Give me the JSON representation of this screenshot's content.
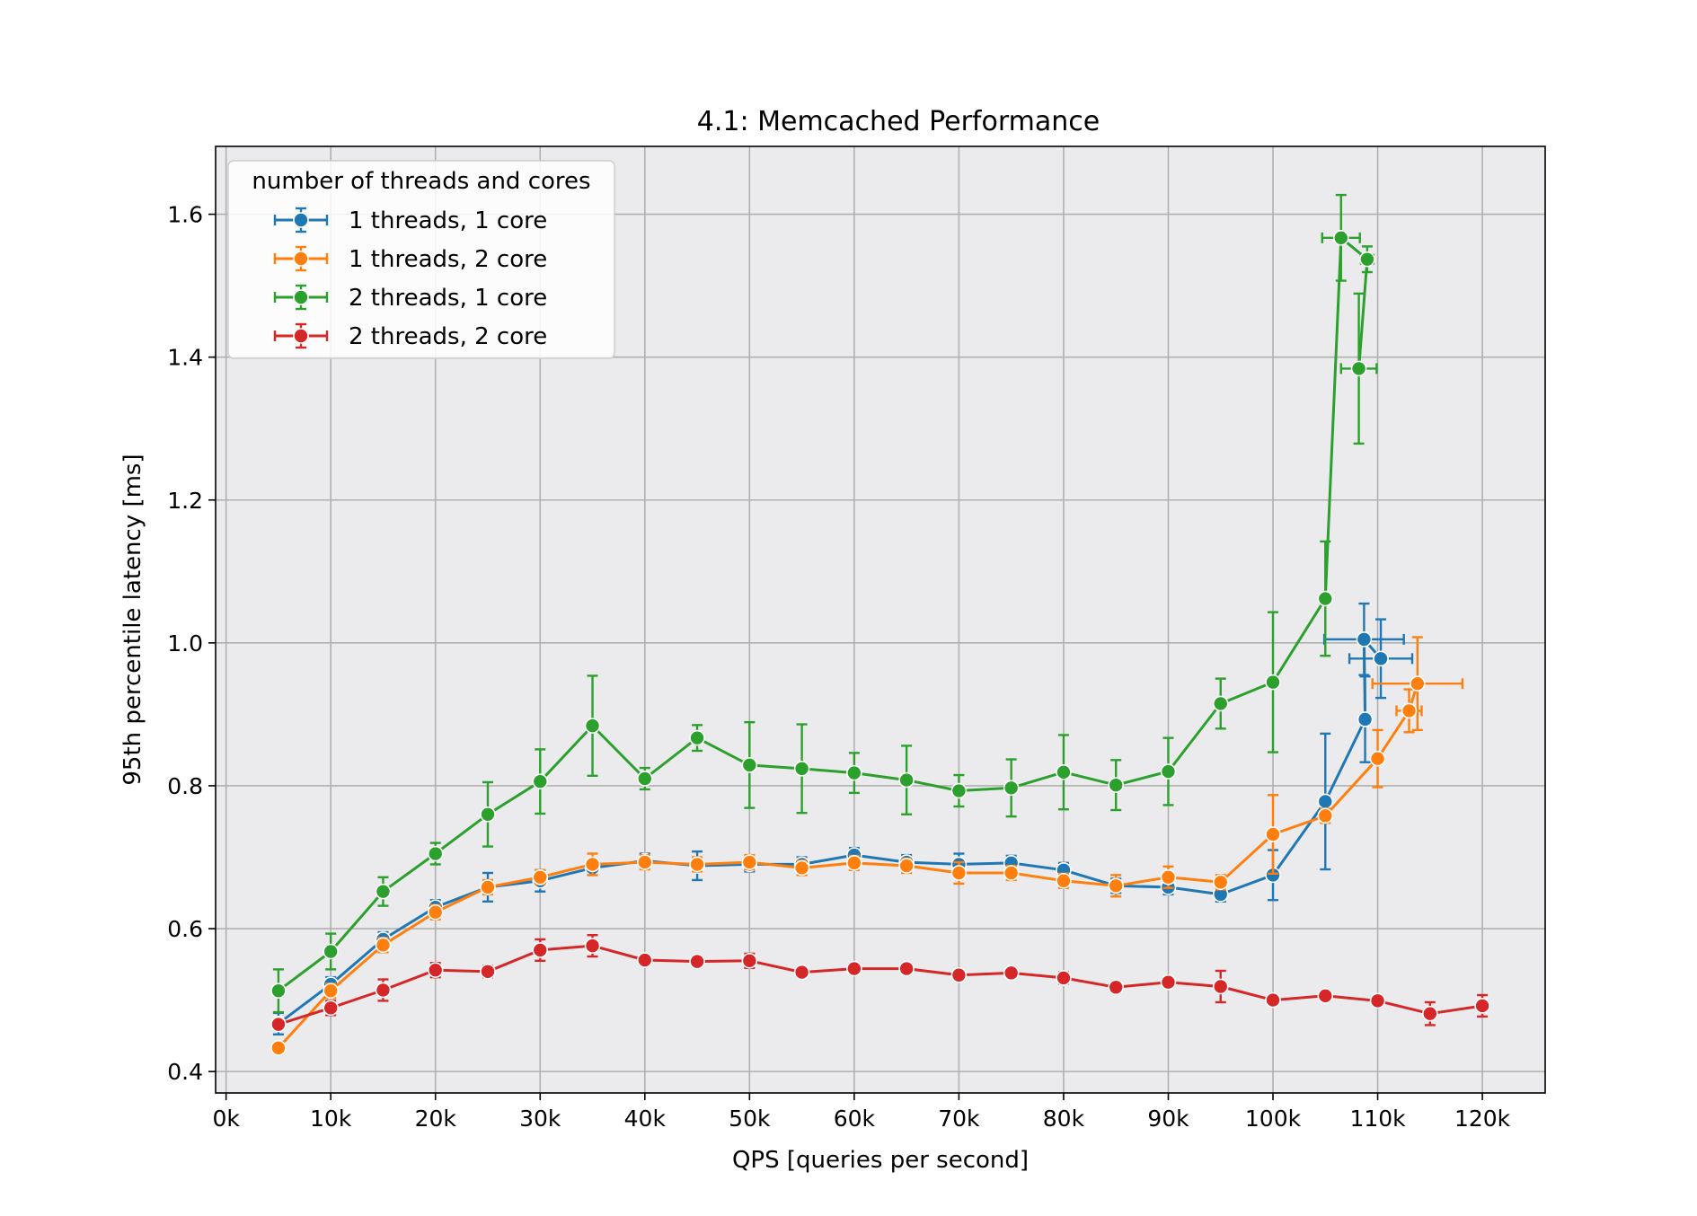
{
  "chart_data": {
    "type": "line",
    "title": "4.1: Memcached Performance",
    "xlabel": "QPS [queries per second]",
    "ylabel": "95th percentile latency [ms]",
    "xlim": [
      -1000,
      126000
    ],
    "ylim": [
      0.37,
      1.695
    ],
    "xticks": [
      0,
      10000,
      20000,
      30000,
      40000,
      50000,
      60000,
      70000,
      80000,
      90000,
      100000,
      110000,
      120000
    ],
    "xtick_labels": [
      "0k",
      "10k",
      "20k",
      "30k",
      "40k",
      "50k",
      "60k",
      "70k",
      "80k",
      "90k",
      "100k",
      "110k",
      "120k"
    ],
    "yticks": [
      0.4,
      0.6,
      0.8,
      1.0,
      1.2,
      1.4,
      1.6
    ],
    "ytick_labels": [
      "0.4",
      "0.6",
      "0.8",
      "1.0",
      "1.2",
      "1.4",
      "1.6"
    ],
    "grid": true,
    "legend": {
      "title": "number of threads and cores",
      "placement": "upper-left"
    },
    "series": [
      {
        "name": "1 threads, 1 core",
        "color": "#1f77b4",
        "x": [
          5000,
          10000,
          15000,
          20000,
          25000,
          30000,
          35000,
          40000,
          45000,
          50000,
          55000,
          60000,
          65000,
          70000,
          75000,
          80000,
          85000,
          90000,
          95000,
          100000,
          105000,
          108800,
          108700,
          110300
        ],
        "y": [
          0.467,
          0.522,
          0.585,
          0.63,
          0.658,
          0.667,
          0.685,
          0.695,
          0.688,
          0.69,
          0.69,
          0.703,
          0.693,
          0.69,
          0.692,
          0.682,
          0.66,
          0.658,
          0.648,
          0.675,
          0.778,
          0.893,
          1.005,
          0.978
        ],
        "yerr": [
          0.015,
          0.01,
          0.01,
          0.01,
          0.02,
          0.015,
          0.01,
          0.01,
          0.02,
          0.01,
          0.01,
          0.01,
          0.01,
          0.015,
          0.01,
          0.01,
          0.01,
          0.01,
          0.01,
          0.035,
          0.095,
          0.06,
          0.05,
          0.055
        ],
        "xerr": [
          0,
          0,
          0,
          0,
          0,
          0,
          0,
          0,
          0,
          0,
          0,
          0,
          0,
          0,
          0,
          0,
          0,
          0,
          0,
          0,
          0,
          0,
          3800,
          3000
        ]
      },
      {
        "name": "1 threads, 2 core",
        "color": "#ff7f0e",
        "x": [
          5000,
          10000,
          15000,
          20000,
          25000,
          30000,
          35000,
          40000,
          45000,
          50000,
          55000,
          60000,
          65000,
          70000,
          75000,
          80000,
          85000,
          90000,
          95000,
          100000,
          105000,
          110000,
          113000,
          113800
        ],
        "y": [
          0.433,
          0.513,
          0.577,
          0.623,
          0.658,
          0.672,
          0.69,
          0.693,
          0.69,
          0.693,
          0.685,
          0.692,
          0.688,
          0.678,
          0.678,
          0.667,
          0.66,
          0.672,
          0.665,
          0.732,
          0.758,
          0.838,
          0.905,
          0.943
        ],
        "yerr": [
          0.005,
          0.01,
          0.01,
          0.01,
          0.01,
          0.01,
          0.015,
          0.01,
          0.01,
          0.01,
          0.01,
          0.01,
          0.01,
          0.015,
          0.01,
          0.01,
          0.015,
          0.015,
          0.01,
          0.055,
          0.01,
          0.04,
          0.03,
          0.065
        ],
        "xerr": [
          0,
          0,
          0,
          0,
          0,
          0,
          0,
          0,
          0,
          0,
          0,
          0,
          0,
          0,
          0,
          0,
          0,
          0,
          0,
          0,
          0,
          0,
          1200,
          4300
        ]
      },
      {
        "name": "2 threads, 1 core",
        "color": "#2ca02c",
        "x": [
          5000,
          10000,
          15000,
          20000,
          25000,
          30000,
          35000,
          40000,
          45000,
          50000,
          55000,
          60000,
          65000,
          70000,
          75000,
          80000,
          85000,
          90000,
          95000,
          100000,
          105000,
          106500,
          109000,
          108200
        ],
        "y": [
          0.513,
          0.568,
          0.652,
          0.705,
          0.76,
          0.806,
          0.884,
          0.81,
          0.867,
          0.829,
          0.824,
          0.818,
          0.808,
          0.793,
          0.797,
          0.819,
          0.801,
          0.82,
          0.915,
          0.945,
          1.062,
          1.567,
          1.537,
          1.384
        ],
        "yerr": [
          0.03,
          0.025,
          0.02,
          0.015,
          0.045,
          0.045,
          0.07,
          0.015,
          0.018,
          0.06,
          0.062,
          0.028,
          0.048,
          0.022,
          0.04,
          0.052,
          0.035,
          0.047,
          0.035,
          0.098,
          0.08,
          0.06,
          0.018,
          0.105
        ],
        "xerr": [
          0,
          0,
          0,
          0,
          0,
          0,
          0,
          0,
          0,
          0,
          0,
          0,
          0,
          0,
          0,
          0,
          0,
          0,
          0,
          0,
          0,
          1800,
          600,
          1700
        ]
      },
      {
        "name": "2 threads, 2 core",
        "color": "#d62728",
        "x": [
          5000,
          10000,
          15000,
          20000,
          25000,
          30000,
          35000,
          40000,
          45000,
          50000,
          55000,
          60000,
          65000,
          70000,
          75000,
          80000,
          85000,
          90000,
          95000,
          100000,
          105000,
          110000,
          115000,
          120000
        ],
        "y": [
          0.466,
          0.489,
          0.514,
          0.542,
          0.54,
          0.57,
          0.576,
          0.556,
          0.554,
          0.555,
          0.539,
          0.544,
          0.544,
          0.535,
          0.538,
          0.531,
          0.518,
          0.525,
          0.519,
          0.5,
          0.506,
          0.499,
          0.481,
          0.492
        ],
        "yerr": [
          0.005,
          0.01,
          0.015,
          0.01,
          0.008,
          0.015,
          0.015,
          0.005,
          0.005,
          0.01,
          0.005,
          0.005,
          0.005,
          0.005,
          0.005,
          0.008,
          0.005,
          0.005,
          0.022,
          0.005,
          0.005,
          0.005,
          0.016,
          0.015
        ],
        "xerr": [
          0,
          0,
          0,
          0,
          0,
          0,
          0,
          0,
          0,
          0,
          0,
          0,
          0,
          0,
          0,
          0,
          0,
          0,
          0,
          0,
          0,
          0,
          0,
          0
        ]
      }
    ]
  }
}
